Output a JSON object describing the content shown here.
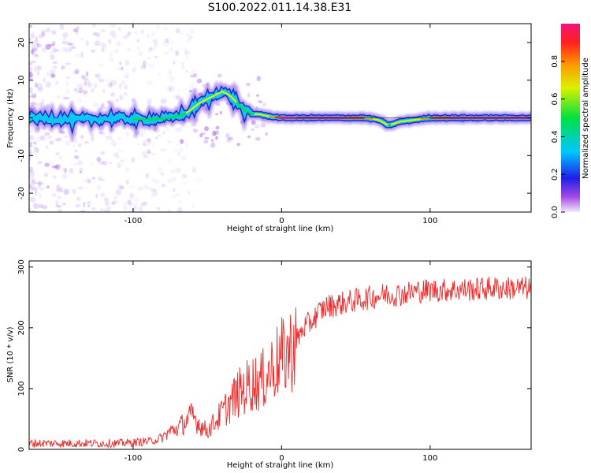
{
  "title": "S100.2022.011.14.38.E31",
  "colors": {
    "snr_line": "#ee2b2b",
    "ridge_core": "#e0245a",
    "noise": "#8a2be2"
  },
  "chart_data": [
    {
      "type": "heatmap",
      "xlabel": "Height of straight line (km)",
      "ylabel": "Frequency (Hz)",
      "xlim": [
        -170,
        168
      ],
      "ylim": [
        -25,
        25
      ],
      "xticks": [
        -100,
        0,
        100
      ],
      "yticks": [
        -20,
        -10,
        0,
        10,
        20
      ],
      "colorbar": {
        "label": "Normalized spectral amplitude",
        "range": [
          0,
          1
        ],
        "ticks": [
          0.0,
          0.2,
          0.4,
          0.6,
          0.8
        ],
        "colormap": "rainbow"
      },
      "ridge": {
        "x": [
          -170,
          -140,
          -110,
          -90,
          -75,
          -65,
          -55,
          -45,
          -40,
          -35,
          -30,
          -25,
          -20,
          -15,
          -10,
          0,
          10,
          30,
          55,
          65,
          72,
          80,
          90,
          100,
          120,
          140,
          168
        ],
        "y": [
          0,
          -0.5,
          0,
          -0.5,
          0,
          1,
          4,
          6,
          7,
          6,
          4,
          2,
          1,
          1,
          0.5,
          0,
          0,
          0,
          0,
          -0.5,
          -2,
          -1,
          -0.5,
          0,
          0,
          0,
          0
        ],
        "amplitude": [
          0.25,
          0.3,
          0.3,
          0.35,
          0.45,
          0.5,
          0.55,
          0.55,
          0.6,
          0.55,
          0.5,
          0.45,
          0.5,
          0.55,
          0.65,
          0.9,
          1.0,
          1.0,
          0.8,
          0.6,
          0.5,
          0.55,
          0.6,
          0.8,
          0.95,
          1.0,
          1.0
        ]
      }
    },
    {
      "type": "line",
      "xlabel": "Height of straight line (km)",
      "ylabel": "SNR (10 * v/v)",
      "xlim": [
        -170,
        168
      ],
      "ylim": [
        0,
        310
      ],
      "xticks": [
        -100,
        0,
        100
      ],
      "yticks": [
        0,
        100,
        200,
        300
      ],
      "series": [
        {
          "x": [
            -170,
            -150,
            -130,
            -110,
            -95,
            -85,
            -80,
            -75,
            -70,
            -65,
            -60,
            -55,
            -50,
            -45,
            -40,
            -35,
            -30,
            -25,
            -20,
            -15,
            -10,
            -5,
            0,
            5,
            10,
            15,
            20,
            25,
            30,
            40,
            50,
            60,
            70,
            80,
            90,
            100,
            110,
            120,
            130,
            140,
            150,
            160,
            168
          ],
          "y": [
            10,
            10,
            10,
            10,
            12,
            15,
            20,
            30,
            35,
            45,
            55,
            40,
            30,
            45,
            60,
            75,
            90,
            100,
            110,
            110,
            120,
            140,
            150,
            160,
            180,
            200,
            210,
            225,
            235,
            240,
            245,
            250,
            255,
            255,
            260,
            262,
            262,
            263,
            263,
            265,
            265,
            265,
            265
          ]
        }
      ]
    }
  ]
}
